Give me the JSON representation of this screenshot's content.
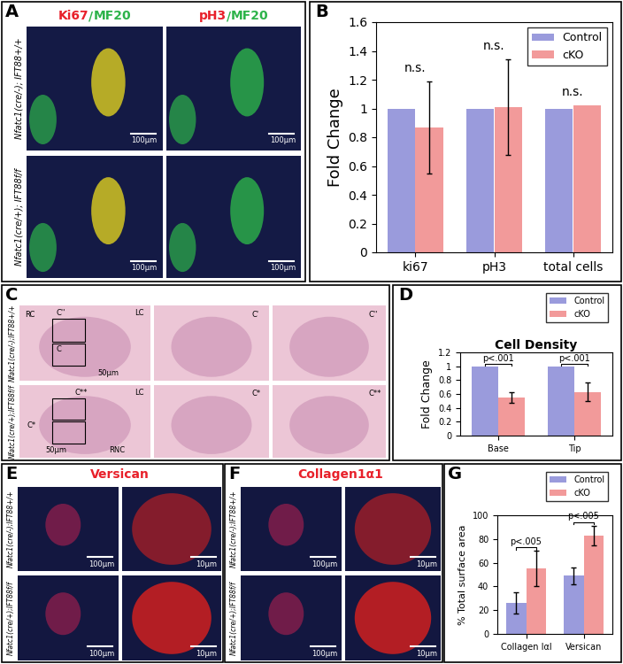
{
  "figure": {
    "panels": [
      {
        "label": "A",
        "columns": [
          [
            {
              "text": "Ki67",
              "color": "#e8202a"
            },
            {
              "text": "/",
              "color": "#2db34a"
            },
            {
              "text": "MF20",
              "color": "#2db34a"
            }
          ],
          [
            {
              "text": "pH3",
              "color": "#e8202a"
            },
            {
              "text": "/",
              "color": "#2db34a"
            },
            {
              "text": "MF20",
              "color": "#2db34a"
            }
          ]
        ],
        "rows": [
          "Nfatc1(cre/-); IFT88+/+",
          "Nfatc1(cre/+); IFT88f/f"
        ],
        "images": [
          [
            {
              "texts": [
                "100µm"
              ]
            },
            {
              "texts": [
                "100µm"
              ]
            }
          ],
          [
            {
              "texts": [
                "100µm"
              ]
            },
            {
              "texts": [
                "100µm"
              ]
            }
          ]
        ]
      },
      {
        "label": "C",
        "columns": [],
        "rows": [
          "Nfatc1(cre/-);IFT88+/+",
          "Nfatc1(cre/+);IFT88f/f"
        ],
        "images": [
          [
            {
              "texts": [
                "RC",
                "C''",
                "C",
                "LC",
                "50µm"
              ]
            },
            {
              "texts": [
                "C'"
              ]
            },
            {
              "texts": [
                "C''"
              ]
            }
          ],
          [
            {
              "texts": [
                "C**",
                "LC",
                "C*",
                "RNC",
                "50µm"
              ]
            },
            {
              "texts": [
                "C*"
              ]
            },
            {
              "texts": [
                "C**"
              ]
            }
          ]
        ]
      },
      {
        "label": "E",
        "columns": [
          [
            {
              "text": "Versican",
              "color": "#e8202a"
            }
          ]
        ],
        "rows": [
          "Nfatc1(cre/-);IFT88+/+",
          "Nfatc1(cre/+);IFT88f/f"
        ],
        "images": [
          [
            {
              "texts": [
                "100µm"
              ]
            },
            {
              "texts": [
                "10µm"
              ]
            }
          ],
          [
            {
              "texts": [
                "100µm"
              ]
            },
            {
              "texts": [
                "10µm"
              ]
            }
          ]
        ]
      },
      {
        "label": "F",
        "columns": [
          [
            {
              "text": "Collagen1α1",
              "color": "#e8202a"
            }
          ]
        ],
        "rows": [
          "Nfatc1(cre/-);IFT88+/+",
          "Nfatc1(cre/+);IFT88f/f"
        ],
        "images": [
          [
            {
              "texts": [
                "100µm"
              ]
            },
            {
              "texts": [
                "10µm"
              ]
            }
          ],
          [
            {
              "texts": [
                "100µm"
              ]
            },
            {
              "texts": [
                "10µm"
              ]
            }
          ]
        ]
      }
    ]
  },
  "chart_data": [
    {
      "panel": "B",
      "type": "bar",
      "categories": [
        "ki67",
        "pH3",
        "total cells"
      ],
      "series": [
        {
          "name": "Control",
          "color": "#9a9bdc",
          "values": [
            1,
            1,
            1
          ]
        },
        {
          "name": "cKO",
          "color": "#f29a9a",
          "values": [
            0.87,
            1.01,
            1.02
          ],
          "errors": [
            0.32,
            0.33,
            null
          ]
        }
      ],
      "ylim": [
        0,
        1.6
      ],
      "yticks": [
        0,
        0.2,
        0.4,
        0.6,
        0.8,
        1,
        1.2,
        1.4,
        1.6
      ],
      "y_label": "Fold Change",
      "legend": "upper right",
      "annotations": [
        "n.s.",
        "n.s.",
        "n.s."
      ]
    },
    {
      "panel": "D",
      "type": "bar",
      "title": "Cell Density",
      "categories": [
        "Base",
        "Tip"
      ],
      "series": [
        {
          "name": "Control",
          "color": "#9a9bdc",
          "values": [
            1,
            1
          ]
        },
        {
          "name": "cKO",
          "color": "#f29a9a",
          "values": [
            0.55,
            0.63
          ],
          "errors": [
            0.08,
            0.13
          ]
        }
      ],
      "ylim": [
        0,
        1.2
      ],
      "yticks": [
        0,
        0.2,
        0.4,
        0.6,
        0.8,
        1,
        1.2
      ],
      "y_label": "Fold Change",
      "legend": "upper right",
      "annotations": [
        "p<.001",
        "p<.001"
      ]
    },
    {
      "panel": "G",
      "type": "bar",
      "categories": [
        "Collagen Iαl",
        "Versican"
      ],
      "series": [
        {
          "name": "Control",
          "color": "#9a9bdc",
          "values": [
            26,
            49
          ],
          "errors": [
            9,
            7
          ]
        },
        {
          "name": "cKO",
          "color": "#f29a9a",
          "values": [
            55,
            83
          ],
          "errors": [
            15,
            8
          ]
        }
      ],
      "ylim": [
        0,
        100
      ],
      "yticks": [
        0,
        20,
        40,
        60,
        80,
        100
      ],
      "y_label": "% Total surface area",
      "legend": "upper right",
      "annotations": [
        "p<.005",
        "p<.005"
      ]
    }
  ]
}
